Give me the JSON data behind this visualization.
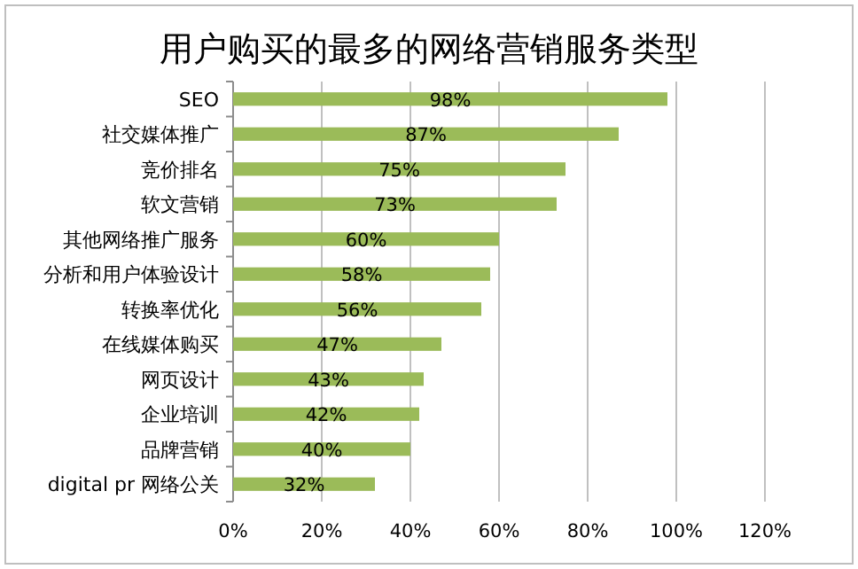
{
  "chart_data": {
    "type": "bar",
    "orientation": "horizontal",
    "title": "用户购买的最多的网络营销服务类型",
    "categories": [
      "SEO",
      "社交媒体推广",
      "竞价排名",
      "软文营销",
      "其他网络推广服务",
      "分析和用户体验设计",
      "转换率优化",
      "在线媒体购买",
      "网页设计",
      "企业培训",
      "品牌营销",
      "digital pr 网络公关"
    ],
    "values": [
      98,
      87,
      75,
      73,
      60,
      58,
      56,
      47,
      43,
      42,
      40,
      32
    ],
    "value_labels": [
      "98%",
      "87%",
      "75%",
      "73%",
      "60%",
      "58%",
      "56%",
      "47%",
      "43%",
      "42%",
      "40%",
      "32%"
    ],
    "color": "#9bbb59",
    "xlim": [
      0,
      120
    ],
    "xticks": [
      {
        "value": 0,
        "label": "0%"
      },
      {
        "value": 20,
        "label": "20%"
      },
      {
        "value": 40,
        "label": "40%"
      },
      {
        "value": 60,
        "label": "60%"
      },
      {
        "value": 80,
        "label": "80%"
      },
      {
        "value": 100,
        "label": "100%"
      },
      {
        "value": 120,
        "label": "120%"
      }
    ],
    "grid": "x"
  }
}
